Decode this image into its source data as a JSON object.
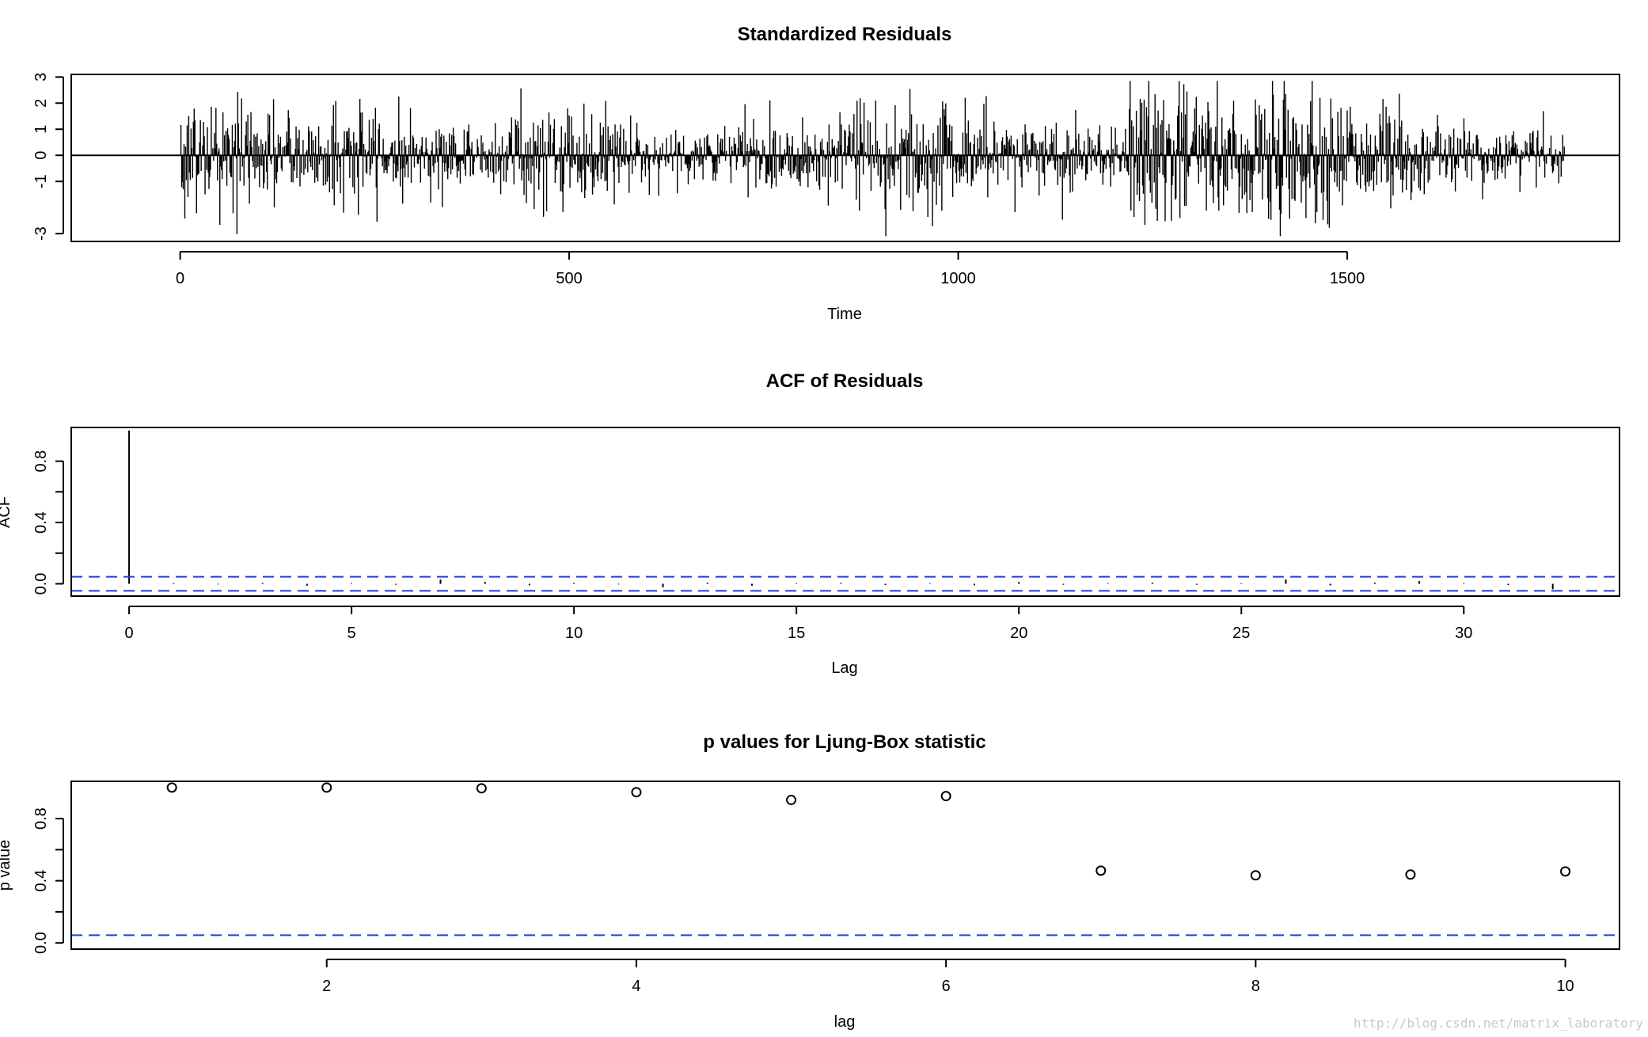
{
  "watermark": "http://blog.csdn.net/matrix_laboratory",
  "colors": {
    "line": "#000000",
    "ci_line": "#1f3fdc"
  },
  "chart_data": [
    {
      "type": "line",
      "title": "Standardized Residuals",
      "xlabel": "Time",
      "ylabel": "",
      "xlim": [
        -140,
        1850
      ],
      "ylim": [
        -3.3,
        3.1
      ],
      "xticks": [
        0,
        500,
        1000,
        1500
      ],
      "yticks": [
        -3,
        -1,
        0,
        1,
        2,
        3
      ],
      "n_points": 1779,
      "baseline": 0,
      "style": "vertical lines (type h)"
    },
    {
      "type": "bar",
      "title": "ACF of Residuals",
      "xlabel": "Lag",
      "ylabel": "ACF",
      "xlim": [
        -1.3,
        33.5
      ],
      "ylim": [
        -0.08,
        1.02
      ],
      "xticks": [
        0,
        5,
        10,
        15,
        20,
        25,
        30
      ],
      "yticks": [
        0.0,
        0.4,
        0.8
      ],
      "yticks_minor": [
        0.2,
        0.6
      ],
      "ci": [
        0.046,
        -0.046
      ],
      "lags": [
        0,
        1,
        2,
        3,
        4,
        5,
        6,
        7,
        8,
        9,
        10,
        11,
        12,
        13,
        14,
        15,
        16,
        17,
        18,
        19,
        20,
        21,
        22,
        23,
        24,
        25,
        26,
        27,
        28,
        29,
        30,
        31,
        32
      ],
      "values": [
        1.0,
        0.005,
        -0.004,
        0.006,
        -0.012,
        0.004,
        -0.006,
        0.028,
        0.012,
        -0.01,
        0.006,
        -0.004,
        -0.022,
        0.008,
        -0.012,
        0.004,
        0.006,
        -0.008,
        0.004,
        -0.01,
        0.012,
        -0.006,
        0.004,
        0.008,
        -0.006,
        0.004,
        0.028,
        -0.01,
        0.008,
        0.018,
        0.004,
        -0.008,
        -0.035
      ]
    },
    {
      "type": "scatter",
      "title": "p values for Ljung-Box statistic",
      "xlabel": "lag",
      "ylabel": "p value",
      "xlim": [
        0.35,
        10.35
      ],
      "ylim": [
        -0.04,
        1.04
      ],
      "xticks": [
        2,
        4,
        6,
        8,
        10
      ],
      "yticks": [
        0.0,
        0.4,
        0.8
      ],
      "yticks_minor": [
        0.2,
        0.6
      ],
      "ref_line": 0.05,
      "x": [
        1,
        2,
        3,
        4,
        5,
        6,
        7,
        8,
        9,
        10
      ],
      "y": [
        1.0,
        1.0,
        0.995,
        0.97,
        0.92,
        0.945,
        0.465,
        0.435,
        0.44,
        0.46
      ]
    }
  ]
}
